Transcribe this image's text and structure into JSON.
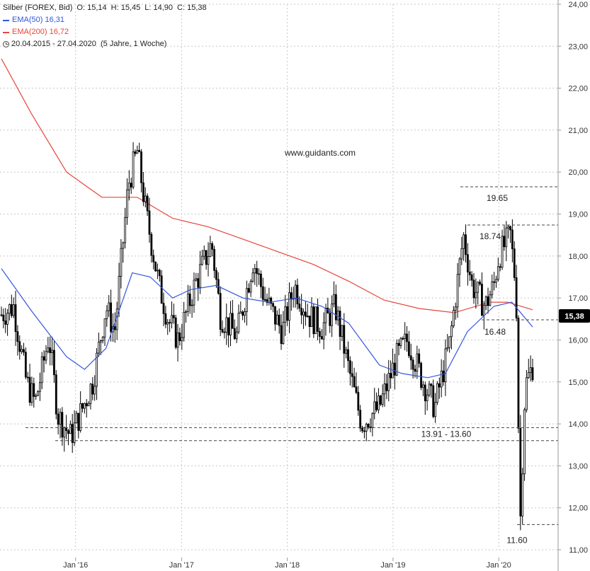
{
  "legend": {
    "instrument": "Silber (FOREX, Bid)",
    "ohlc": {
      "open_label": "O:",
      "open": "15,14",
      "high_label": "H:",
      "high": "15,45",
      "low_label": "L:",
      "low": "14,90",
      "close_label": "C:",
      "close": "15,38"
    },
    "ema50_label": "EMA(50)",
    "ema50_value": "16,31",
    "ema200_label": "EMA(200)",
    "ema200_value": "16,72",
    "period": "20.04.2015 - 27.04.2020",
    "period_note": "(5 Jahre, 1 Woche)"
  },
  "watermark": "www.guidants.com",
  "price_badge": "15,38",
  "colors": {
    "candles": "#000000",
    "ema50": "#3355dd",
    "ema200": "#e8453c",
    "badge_bg": "#000000",
    "badge_text": "#ffffff",
    "grid": "#c8c8c8",
    "level_lines": "#444444"
  },
  "chart_data": {
    "type": "line",
    "x_start": "2015-04-20",
    "x_end": "2020-04-27",
    "interval": "1 Woche",
    "ylim": [
      11.0,
      24.0
    ],
    "y_ticks": [
      "11,00",
      "12,00",
      "13,00",
      "14,00",
      "15,00",
      "16,00",
      "17,00",
      "18,00",
      "19,00",
      "20,00",
      "21,00",
      "22,00",
      "23,00",
      "24,00"
    ],
    "x_ticks": [
      {
        "label": "Jan '16",
        "date": "2016-01-01"
      },
      {
        "label": "Jan '17",
        "date": "2017-01-01"
      },
      {
        "label": "Jan '18",
        "date": "2018-01-01"
      },
      {
        "label": "Jan '19",
        "date": "2019-01-01"
      },
      {
        "label": "Jan '20",
        "date": "2020-01-01"
      }
    ],
    "grid": true,
    "series": [
      {
        "name": "Silber (FOREX, Bid)",
        "x": [
          "2015-04-20",
          "2015-06-01",
          "2015-07-15",
          "2015-08-15",
          "2015-10-01",
          "2015-11-01",
          "2015-12-15",
          "2016-01-15",
          "2016-03-01",
          "2016-04-15",
          "2016-05-15",
          "2016-07-01",
          "2016-08-01",
          "2016-09-01",
          "2016-10-15",
          "2016-11-15",
          "2016-12-20",
          "2017-02-15",
          "2017-04-15",
          "2017-05-15",
          "2017-07-10",
          "2017-09-05",
          "2017-10-15",
          "2017-12-15",
          "2018-01-25",
          "2018-03-15",
          "2018-05-01",
          "2018-06-15",
          "2018-08-01",
          "2018-09-15",
          "2018-11-15",
          "2019-01-15",
          "2019-02-20",
          "2019-04-15",
          "2019-05-25",
          "2019-07-15",
          "2019-09-01",
          "2019-10-01",
          "2019-11-15",
          "2019-12-15",
          "2020-01-01",
          "2020-02-10",
          "2020-03-01",
          "2020-03-15",
          "2020-04-01",
          "2020-04-27"
        ],
        "values": [
          16.6,
          16.8,
          15.0,
          14.5,
          16.1,
          14.2,
          13.7,
          14.2,
          15.0,
          16.8,
          16.2,
          19.7,
          20.5,
          19.0,
          17.3,
          16.5,
          16.0,
          17.3,
          18.3,
          16.6,
          16.1,
          17.9,
          17.0,
          16.2,
          17.3,
          16.6,
          16.3,
          16.8,
          15.3,
          14.0,
          14.4,
          15.6,
          16.0,
          15.0,
          14.4,
          15.9,
          18.5,
          17.3,
          16.8,
          17.3,
          18.0,
          18.5,
          17.2,
          11.6,
          14.9,
          15.38
        ],
        "kind": "candles"
      },
      {
        "name": "EMA(50)",
        "x": [
          "2015-04-20",
          "2015-08-01",
          "2015-12-01",
          "2016-02-01",
          "2016-04-15",
          "2016-07-15",
          "2016-09-15",
          "2016-12-01",
          "2017-02-01",
          "2017-05-01",
          "2017-08-01",
          "2017-11-01",
          "2018-02-01",
          "2018-05-01",
          "2018-08-01",
          "2018-11-15",
          "2019-02-01",
          "2019-05-01",
          "2019-07-01",
          "2019-09-15",
          "2019-12-15",
          "2020-02-15",
          "2020-04-27"
        ],
        "values": [
          17.7,
          16.7,
          15.6,
          15.3,
          15.8,
          17.6,
          17.5,
          17.0,
          17.2,
          17.3,
          17.0,
          16.9,
          17.0,
          16.8,
          16.4,
          15.4,
          15.2,
          15.1,
          15.2,
          16.2,
          16.8,
          16.9,
          16.31
        ]
      },
      {
        "name": "EMA(200)",
        "x": [
          "2015-04-20",
          "2015-08-01",
          "2015-12-01",
          "2016-04-01",
          "2016-08-01",
          "2016-12-01",
          "2017-04-01",
          "2017-08-01",
          "2017-12-01",
          "2018-04-01",
          "2018-08-01",
          "2018-12-01",
          "2019-04-01",
          "2019-08-01",
          "2019-12-01",
          "2020-02-01",
          "2020-04-27"
        ],
        "values": [
          22.7,
          21.4,
          20.0,
          19.4,
          19.4,
          18.9,
          18.7,
          18.4,
          18.1,
          17.8,
          17.4,
          16.95,
          16.75,
          16.65,
          16.9,
          16.9,
          16.72
        ]
      }
    ],
    "annotations": [
      {
        "label": "19.65",
        "y": 19.65
      },
      {
        "label": "18.74",
        "y": 18.74
      },
      {
        "label": "16.48",
        "y": 16.48
      },
      {
        "label": "13.91 - 13.60",
        "y": [
          13.91,
          13.6
        ]
      },
      {
        "label": "11.60",
        "y": 11.6
      }
    ]
  }
}
